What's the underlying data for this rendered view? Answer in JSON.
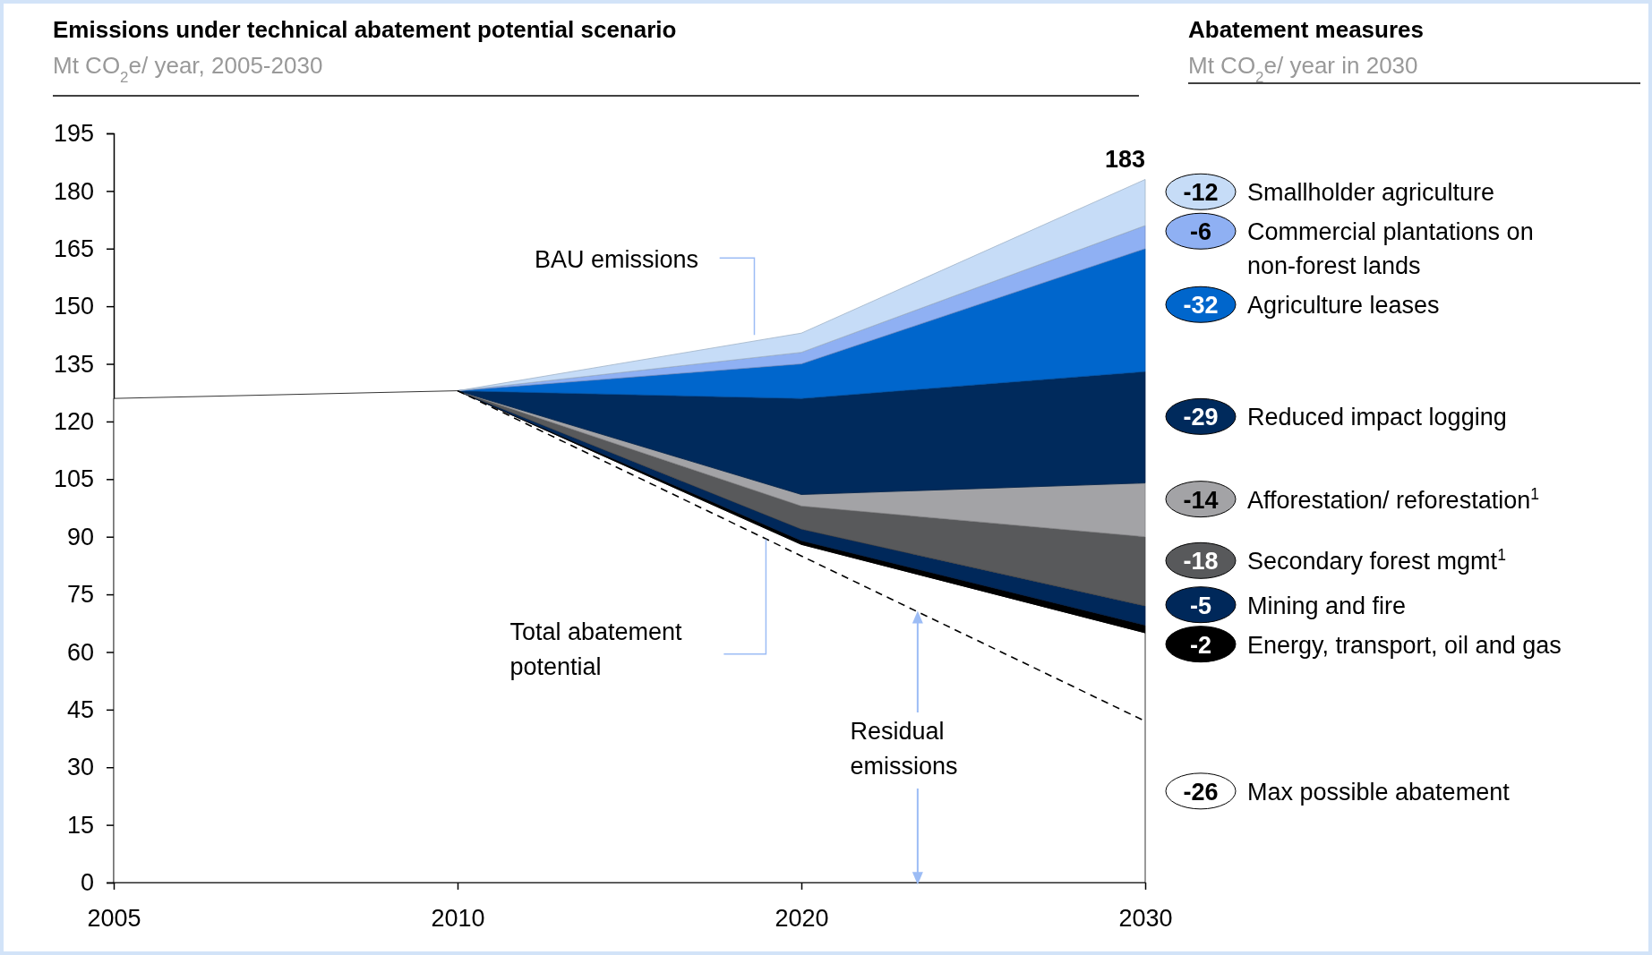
{
  "chart_data": {
    "type": "area",
    "title": "Emissions under technical abatement potential scenario",
    "subtitle": "Mt CO$_{2}$e/ year, 2005-2030",
    "legend_title": "Abatement measures",
    "categories": [
      "2005",
      "2010",
      "2020",
      "2030"
    ],
    "stacked": true,
    "ylim": [
      0,
      195
    ],
    "yticks": [
      0,
      15,
      30,
      45,
      60,
      75,
      90,
      105,
      120,
      135,
      150,
      165,
      180,
      195
    ],
    "grid": false,
    "legend": "right",
    "series": [
      {
        "color": "#ffffff",
        "values": [
          126,
          128,
          88,
          65
        ]
      },
      {
        "name": "Energy, transport, oil and gas",
        "color": "#000000",
        "values": [
          null,
          0,
          1,
          2
        ]
      },
      {
        "name": "Mining and fire",
        "color": "#00285a",
        "values": [
          null,
          0,
          3,
          5
        ]
      },
      {
        "name": "Secondary forest mgmt$^{1}$",
        "color": "#58595b",
        "values": [
          null,
          0,
          6,
          18
        ]
      },
      {
        "name": "Afforestation/ reforestation$^{1}$",
        "color": "#a3a3a6",
        "values": [
          null,
          0,
          3,
          14
        ]
      },
      {
        "name": "Reduced impact logging",
        "color": "#002a5c",
        "values": [
          null,
          0,
          25,
          29
        ]
      },
      {
        "name": "Agriculture leases",
        "color": "#0066cc",
        "values": [
          null,
          0,
          9,
          32
        ]
      },
      {
        "name": "Commercial plantations on non-forest lands",
        "color": "#8fb0f3",
        "values": [
          null,
          0,
          3,
          6
        ]
      },
      {
        "name": "Smallholder agriculture",
        "color": "#c6dcf7",
        "values": [
          null,
          0,
          5,
          12
        ]
      },
      {
        "name": "Max possible abatement",
        "type": "line",
        "line_style": "dashed",
        "color": "#000000",
        "values": [
          null,
          128,
          85,
          42
        ]
      }
    ],
    "annotations": [
      "Mt CO$_{2}$e/ year in 2030",
      "183",
      "BAU emissions",
      "Total abatement potential",
      "Residual emissions",
      "-12",
      "-6",
      "-32",
      "-29",
      "-14",
      "-18",
      "-5",
      "-2",
      "-26"
    ]
  }
}
